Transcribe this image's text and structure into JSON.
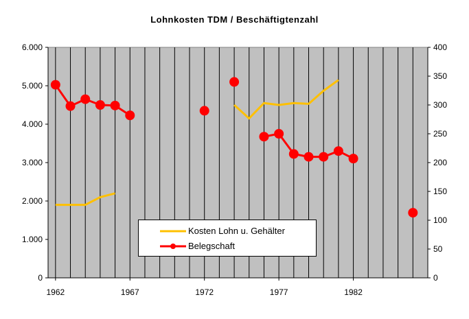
{
  "chart_data": {
    "type": "line",
    "title": "Lohnkosten TDM / Beschäftigtenzahl",
    "x_ticks": [
      "1962",
      "1967",
      "1972",
      "1977",
      "1982"
    ],
    "xlim": [
      1961.5,
      1987
    ],
    "y_left": {
      "ylim": [
        0,
        6000
      ],
      "tick_labels": [
        "0",
        "1.000",
        "2.000",
        "3.000",
        "4.000",
        "5.000",
        "6.000"
      ]
    },
    "y_right": {
      "ylim": [
        0,
        400
      ],
      "tick_labels": [
        "0",
        "50",
        "100",
        "150",
        "200",
        "250",
        "300",
        "350",
        "400"
      ]
    },
    "grid": "vertical",
    "legend_position": "bottom-center",
    "series": [
      {
        "name": "Kosten Lohn u. Gehälter",
        "axis": "left",
        "color": "#ffc000",
        "segments": [
          [
            [
              1962,
              1900
            ],
            [
              1963,
              1900
            ],
            [
              1964,
              1900
            ],
            [
              1965,
              2100
            ],
            [
              1966,
              2200
            ]
          ],
          [
            [
              1974,
              4500
            ],
            [
              1975,
              4150
            ],
            [
              1976,
              4550
            ],
            [
              1977,
              4500
            ],
            [
              1978,
              4550
            ],
            [
              1979,
              4530
            ],
            [
              1980,
              4870
            ],
            [
              1981,
              5150
            ]
          ]
        ]
      },
      {
        "name": "Belegschaft",
        "axis": "right",
        "color": "#ff0000",
        "segments": [
          [
            [
              1962,
              335
            ],
            [
              1963,
              298
            ],
            [
              1964,
              310
            ],
            [
              1965,
              300
            ],
            [
              1966,
              299
            ],
            [
              1967,
              282
            ]
          ],
          [
            [
              1972,
              290
            ]
          ],
          [
            [
              1974,
              340
            ]
          ],
          [
            [
              1976,
              245
            ],
            [
              1977,
              250
            ],
            [
              1978,
              215
            ],
            [
              1979,
              210
            ],
            [
              1980,
              210
            ],
            [
              1981,
              220
            ],
            [
              1982,
              207
            ]
          ],
          [
            [
              1986,
              113
            ]
          ]
        ]
      }
    ]
  }
}
